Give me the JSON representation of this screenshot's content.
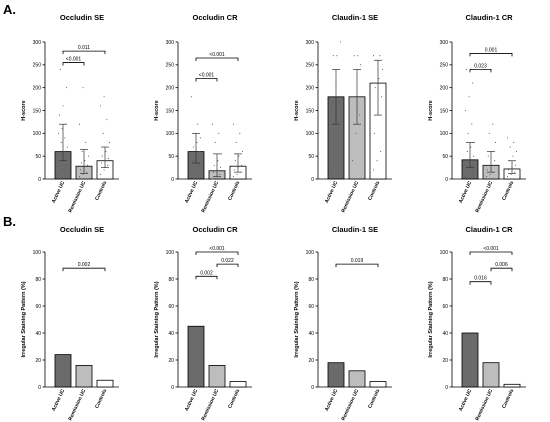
{
  "figure": {
    "panel_labels": [
      "A.",
      "B."
    ],
    "colors": {
      "active_uc": "#6b6b6b",
      "remission_uc": "#bdbdbd",
      "controls": "#ffffff",
      "outline": "#000000",
      "points": "#555555"
    }
  },
  "chart_data": [
    {
      "panel": "A",
      "type": "bar",
      "title": "Occludin SE",
      "ylabel": "H-score",
      "ylim": [
        0,
        300
      ],
      "yticks": [
        0,
        50,
        100,
        150,
        200,
        250,
        300
      ],
      "categories": [
        "Active UC",
        "Remission UC",
        "Controls"
      ],
      "values": [
        60,
        28,
        40
      ],
      "error_low": [
        40,
        12,
        25
      ],
      "error_high": [
        120,
        65,
        70
      ],
      "comparisons": [
        {
          "pair": [
            0,
            1
          ],
          "p": "<0.001",
          "y": 255
        },
        {
          "pair": [
            0,
            2
          ],
          "p": "0.011",
          "y": 280
        }
      ],
      "points": [
        [
          10,
          20,
          30,
          40,
          45,
          50,
          55,
          60,
          70,
          80,
          90,
          100,
          110,
          120,
          140,
          160,
          200,
          240
        ],
        [
          5,
          10,
          15,
          20,
          25,
          30,
          35,
          40,
          50,
          60,
          80,
          120,
          200
        ],
        [
          10,
          20,
          30,
          35,
          40,
          45,
          50,
          60,
          80,
          100,
          130,
          160,
          180
        ]
      ]
    },
    {
      "panel": "A",
      "type": "bar",
      "title": "Occludin CR",
      "ylabel": "H-score",
      "ylim": [
        0,
        300
      ],
      "yticks": [
        0,
        50,
        100,
        150,
        200,
        250,
        300
      ],
      "categories": [
        "Active UC",
        "Remission UC",
        "Controls"
      ],
      "values": [
        60,
        18,
        28
      ],
      "error_low": [
        35,
        5,
        15
      ],
      "error_high": [
        100,
        55,
        55
      ],
      "comparisons": [
        {
          "pair": [
            0,
            1
          ],
          "p": "<0.001",
          "y": 220
        },
        {
          "pair": [
            0,
            2
          ],
          "p": "<0.001",
          "y": 265
        }
      ],
      "points": [
        [
          10,
          20,
          30,
          40,
          50,
          60,
          70,
          80,
          90,
          100,
          120,
          180
        ],
        [
          0,
          5,
          10,
          15,
          20,
          25,
          30,
          40,
          55,
          80,
          100,
          120
        ],
        [
          5,
          10,
          15,
          20,
          25,
          30,
          40,
          50,
          60,
          80,
          100,
          120
        ]
      ]
    },
    {
      "panel": "A",
      "type": "bar",
      "title": "Claudin-1 SE",
      "ylabel": "H-score",
      "ylim": [
        0,
        300
      ],
      "yticks": [
        0,
        50,
        100,
        150,
        200,
        250,
        300
      ],
      "categories": [
        "Active UC",
        "Remission UC",
        "Controls"
      ],
      "values": [
        180,
        180,
        210
      ],
      "error_low": [
        120,
        120,
        140
      ],
      "error_high": [
        240,
        240,
        260
      ],
      "comparisons": [],
      "points": [
        [
          20,
          80,
          120,
          160,
          200,
          240,
          270,
          270,
          300
        ],
        [
          40,
          100,
          140,
          180,
          220,
          250,
          270,
          270
        ],
        [
          20,
          40,
          60,
          100,
          140,
          180,
          200,
          220,
          240,
          260,
          270,
          270
        ]
      ]
    },
    {
      "panel": "A",
      "type": "bar",
      "title": "Claudin-1 CR",
      "ylabel": "H-score",
      "ylim": [
        0,
        300
      ],
      "yticks": [
        0,
        50,
        100,
        150,
        200,
        250,
        300
      ],
      "categories": [
        "Active UC",
        "Remission UC",
        "Controls"
      ],
      "values": [
        42,
        30,
        22
      ],
      "error_low": [
        25,
        15,
        12
      ],
      "error_high": [
        80,
        60,
        40
      ],
      "comparisons": [
        {
          "pair": [
            0,
            1
          ],
          "p": "0.023",
          "y": 240
        },
        {
          "pair": [
            0,
            2
          ],
          "p": "0.001",
          "y": 275
        }
      ],
      "points": [
        [
          5,
          10,
          20,
          30,
          40,
          50,
          60,
          70,
          80,
          100,
          120,
          150,
          180,
          210,
          240
        ],
        [
          5,
          10,
          15,
          20,
          30,
          40,
          50,
          60,
          80,
          100,
          120
        ],
        [
          5,
          10,
          15,
          20,
          25,
          30,
          40,
          50,
          60,
          70,
          80,
          90
        ]
      ]
    },
    {
      "panel": "B",
      "type": "bar",
      "title": "Occludin SE",
      "ylabel": "Irregular Staining Pattern (%)",
      "ylim": [
        0,
        100
      ],
      "yticks": [
        0,
        20,
        40,
        60,
        80,
        100
      ],
      "categories": [
        "Active UC",
        "Remission UC",
        "Controls"
      ],
      "values": [
        24,
        16,
        5
      ],
      "comparisons": [
        {
          "pair": [
            0,
            2
          ],
          "p": "0.002",
          "y": 88
        }
      ]
    },
    {
      "panel": "B",
      "type": "bar",
      "title": "Occludin CR",
      "ylabel": "Irregular Staining Pattern (%)",
      "ylim": [
        0,
        100
      ],
      "yticks": [
        0,
        20,
        40,
        60,
        80,
        100
      ],
      "categories": [
        "Active UC",
        "Remission UC",
        "Controls"
      ],
      "values": [
        45,
        16,
        4
      ],
      "comparisons": [
        {
          "pair": [
            0,
            1
          ],
          "p": "0.002",
          "y": 82
        },
        {
          "pair": [
            1,
            2
          ],
          "p": "0.022",
          "y": 91
        },
        {
          "pair": [
            0,
            2
          ],
          "p": "<0.001",
          "y": 100
        }
      ]
    },
    {
      "panel": "B",
      "type": "bar",
      "title": "Claudin-1 SE",
      "ylabel": "Irregular Staining Pattern (%)",
      "ylim": [
        0,
        100
      ],
      "yticks": [
        0,
        20,
        40,
        60,
        80,
        100
      ],
      "categories": [
        "Active UC",
        "Remission UC",
        "Controls"
      ],
      "values": [
        18,
        12,
        4
      ],
      "comparisons": [
        {
          "pair": [
            0,
            2
          ],
          "p": "0.019",
          "y": 91
        }
      ]
    },
    {
      "panel": "B",
      "type": "bar",
      "title": "Claudin-1 CR",
      "ylabel": "Irregular Staining Pattern (%)",
      "ylim": [
        0,
        100
      ],
      "yticks": [
        0,
        20,
        40,
        60,
        80,
        100
      ],
      "categories": [
        "Active UC",
        "Remission UC",
        "Controls"
      ],
      "values": [
        40,
        18,
        2
      ],
      "comparisons": [
        {
          "pair": [
            0,
            1
          ],
          "p": "0.016",
          "y": 78
        },
        {
          "pair": [
            1,
            2
          ],
          "p": "0.006",
          "y": 88
        },
        {
          "pair": [
            0,
            2
          ],
          "p": "<0.001",
          "y": 100
        }
      ]
    }
  ]
}
